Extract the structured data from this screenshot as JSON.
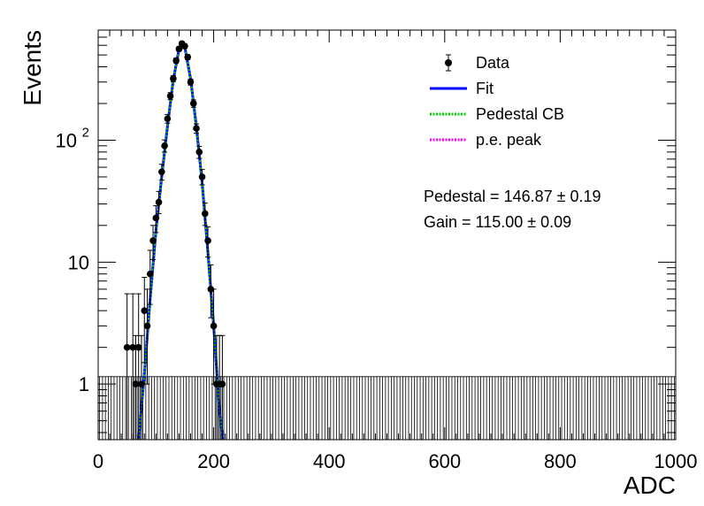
{
  "chart_data": {
    "type": "scatter",
    "title": "",
    "xlabel": "ADC",
    "ylabel": "Events",
    "xlim": [
      0,
      1000
    ],
    "ylim": [
      0.35,
      800
    ],
    "log_y": true,
    "grid": false,
    "legend_position": "top-right",
    "x_ticks": [
      {
        "value": 0,
        "label": "0"
      },
      {
        "value": 200,
        "label": "200"
      },
      {
        "value": 400,
        "label": "400"
      },
      {
        "value": 600,
        "label": "600"
      },
      {
        "value": 800,
        "label": "800"
      },
      {
        "value": 1000,
        "label": "1000"
      }
    ],
    "y_ticks": [
      {
        "value": 1,
        "label": "1"
      },
      {
        "value": 10,
        "label": "10"
      },
      {
        "value": 100,
        "label": "10",
        "sup": "2"
      }
    ],
    "legend": [
      {
        "label": "Data",
        "style": "marker-errorbar",
        "color": "#000000"
      },
      {
        "label": "Fit",
        "style": "solid",
        "color": "#0000ff"
      },
      {
        "label": "Pedestal CB",
        "style": "dotted",
        "color": "#00cc00"
      },
      {
        "label": "p.e. peak",
        "style": "dotted",
        "color": "#ff00ff"
      }
    ],
    "annotations": [
      {
        "text": "Pedestal = 146.87 ± 0.19"
      },
      {
        "text": "Gain = 115.00 ± 0.09"
      }
    ],
    "series": [
      {
        "name": "Data",
        "kind": "points",
        "color": "#000000",
        "x": [
          50,
          60,
          65,
          70,
          75,
          80,
          85,
          90,
          95,
          100,
          105,
          110,
          115,
          120,
          125,
          130,
          135,
          140,
          145,
          150,
          155,
          160,
          165,
          170,
          175,
          180,
          185,
          190,
          195,
          200,
          205,
          210,
          215
        ],
        "y": [
          2,
          2,
          1,
          2,
          1,
          4,
          3,
          8,
          15,
          23,
          31,
          55,
          90,
          150,
          230,
          320,
          450,
          560,
          620,
          590,
          480,
          300,
          200,
          125,
          80,
          50,
          25,
          15,
          6,
          3,
          1,
          1,
          1
        ],
        "err_low": [
          2,
          2,
          1,
          2,
          1,
          2.5,
          2,
          3.5,
          4.5,
          5.5,
          6,
          8,
          10,
          12,
          15,
          18,
          21,
          24,
          25,
          24,
          22,
          17,
          14,
          11,
          9,
          7,
          5,
          4,
          2.5,
          2,
          1,
          1,
          1
        ],
        "err_high": [
          3.5,
          3.5,
          1.5,
          3.5,
          1.5,
          3.5,
          3,
          4.5,
          5,
          6,
          7,
          8.5,
          10.5,
          12.5,
          15.5,
          18,
          21,
          24,
          25,
          24,
          22,
          17,
          14,
          11,
          9,
          7.5,
          5.5,
          4.5,
          3.5,
          3,
          1.5,
          1.5,
          1.5
        ]
      },
      {
        "name": "Fit",
        "kind": "curve",
        "color": "#0000ff",
        "x": [
          70,
          80,
          90,
          100,
          110,
          120,
          130,
          140,
          145,
          150,
          160,
          170,
          180,
          190,
          200,
          210,
          216
        ],
        "y": [
          0.35,
          1.2,
          5,
          18,
          50,
          130,
          310,
          560,
          610,
          580,
          320,
          130,
          45,
          12,
          3,
          0.6,
          0.35
        ]
      },
      {
        "name": "Pedestal CB",
        "kind": "curve",
        "color": "#00cc00",
        "x": [
          70,
          80,
          90,
          100,
          110,
          120,
          130,
          140,
          145,
          150,
          160,
          170,
          180,
          190,
          200,
          210,
          216
        ],
        "y": [
          0.35,
          1.2,
          5,
          18,
          50,
          130,
          310,
          560,
          610,
          580,
          320,
          130,
          45,
          12,
          3,
          0.6,
          0.35
        ]
      },
      {
        "name": "Empty bins",
        "kind": "errorbars",
        "color": "#000000",
        "x_range": [
          0,
          1000
        ],
        "bin_width": 5,
        "y": 0,
        "err_high": 1.15
      }
    ]
  }
}
